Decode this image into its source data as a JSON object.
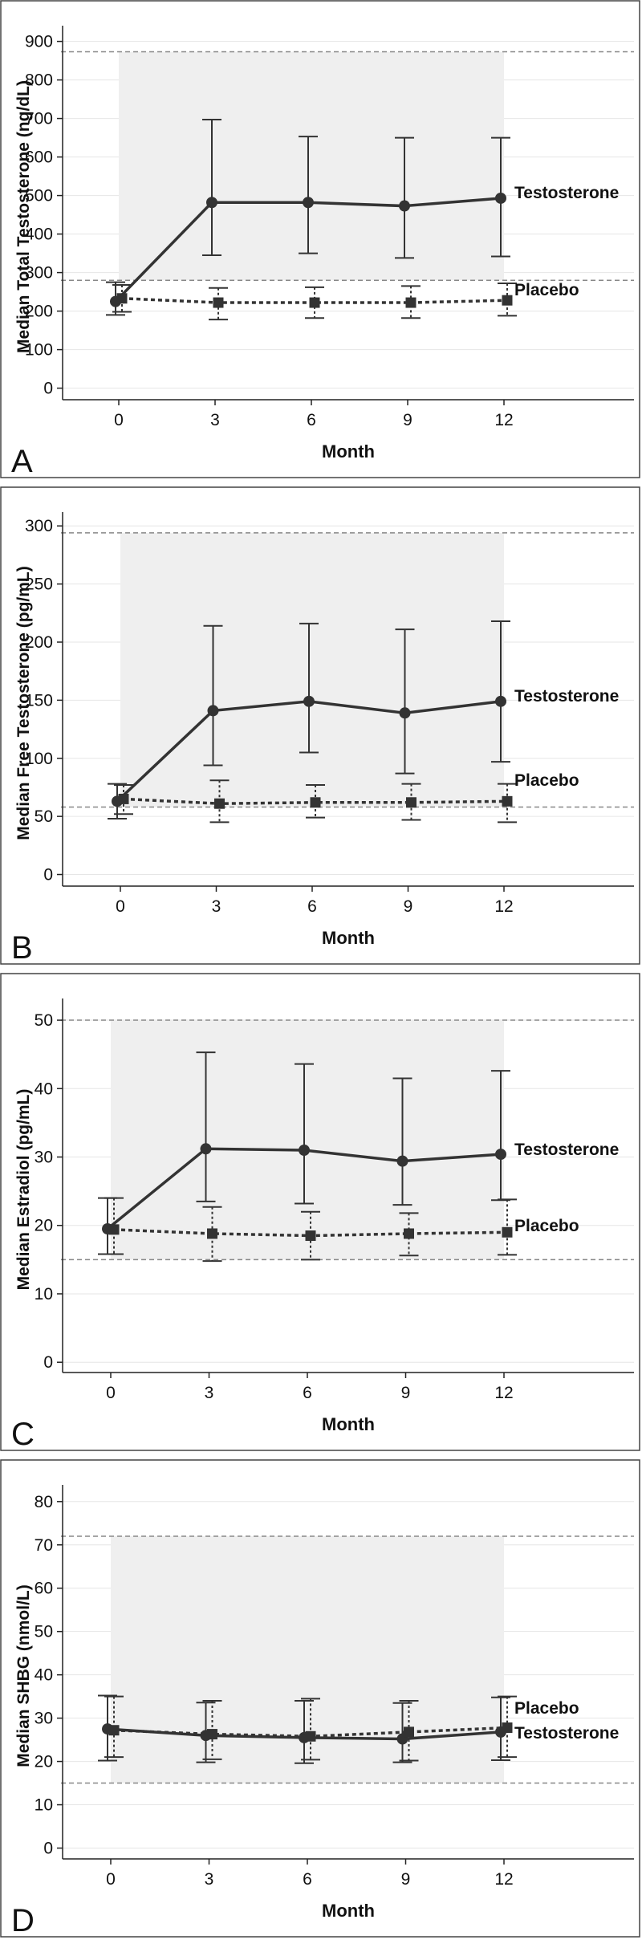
{
  "chart_data": [
    {
      "type": "line",
      "panel_letter": "A",
      "ylabel": "Median Total Testosterone (ng/dL)",
      "xlabel": "Month",
      "x": [
        0,
        3,
        6,
        9,
        12
      ],
      "xticks": [
        "0",
        "3",
        "6",
        "9",
        "12"
      ],
      "ylim": [
        -30,
        920
      ],
      "yticks": [
        0,
        100,
        200,
        300,
        400,
        500,
        600,
        700,
        800,
        900
      ],
      "normal_range": [
        280,
        873
      ],
      "shaded_range": [
        280,
        873
      ],
      "series": [
        {
          "name": "Testosterone",
          "values": [
            225,
            482,
            482,
            473,
            493
          ],
          "lower": [
            190,
            345,
            350,
            338,
            342
          ],
          "upper": [
            275,
            697,
            653,
            650,
            650
          ]
        },
        {
          "name": "Placebo",
          "values": [
            233,
            222,
            222,
            222,
            228
          ],
          "lower": [
            198,
            178,
            182,
            182,
            188
          ],
          "upper": [
            268,
            260,
            262,
            265,
            272
          ]
        }
      ]
    },
    {
      "type": "line",
      "panel_letter": "B",
      "ylabel": "Median Free Testosterone (pg/mL)",
      "xlabel": "Month",
      "x": [
        0,
        3,
        6,
        9,
        12
      ],
      "xticks": [
        "0",
        "3",
        "6",
        "9",
        "12"
      ],
      "ylim": [
        -10,
        305
      ],
      "yticks": [
        0,
        50,
        100,
        150,
        200,
        250,
        300
      ],
      "normal_range": [
        58,
        294
      ],
      "shaded_range": [
        58,
        294
      ],
      "series": [
        {
          "name": "Testosterone",
          "values": [
            63,
            141,
            149,
            139,
            149
          ],
          "lower": [
            48,
            94,
            105,
            87,
            97
          ],
          "upper": [
            78,
            214,
            216,
            211,
            218
          ]
        },
        {
          "name": "Placebo",
          "values": [
            65,
            61,
            62,
            62,
            63
          ],
          "lower": [
            52,
            45,
            49,
            47,
            45
          ],
          "upper": [
            77,
            81,
            77,
            78,
            78
          ]
        }
      ]
    },
    {
      "type": "line",
      "panel_letter": "C",
      "ylabel": "Median Estradiol (pg/mL)",
      "xlabel": "Month",
      "x": [
        0,
        3,
        6,
        9,
        12
      ],
      "xticks": [
        "0",
        "3",
        "6",
        "9",
        "12"
      ],
      "ylim": [
        -1.5,
        52
      ],
      "yticks": [
        0,
        10,
        20,
        30,
        40,
        50
      ],
      "normal_range": [
        15,
        50
      ],
      "shaded_range": [
        15,
        50
      ],
      "series": [
        {
          "name": "Testosterone",
          "values": [
            19.5,
            31.2,
            31.0,
            29.4,
            30.4
          ],
          "lower": [
            15.8,
            23.5,
            23.2,
            23.0,
            23.7
          ],
          "upper": [
            24.0,
            45.3,
            43.6,
            41.5,
            42.6
          ]
        },
        {
          "name": "Placebo",
          "values": [
            19.4,
            18.8,
            18.5,
            18.8,
            19.0
          ],
          "lower": [
            15.8,
            14.8,
            15.0,
            15.6,
            15.7
          ],
          "upper": [
            24.0,
            22.7,
            22.0,
            21.8,
            23.8
          ]
        }
      ]
    },
    {
      "type": "line",
      "panel_letter": "D",
      "ylabel": "Median SHBG (nmol/L)",
      "xlabel": "Month",
      "x": [
        0,
        3,
        6,
        9,
        12
      ],
      "xticks": [
        "0",
        "3",
        "6",
        "9",
        "12"
      ],
      "ylim": [
        -2.5,
        82
      ],
      "yticks": [
        0,
        10,
        20,
        30,
        40,
        50,
        60,
        70,
        80
      ],
      "normal_range": [
        15,
        72
      ],
      "shaded_range": [
        15,
        72
      ],
      "series": [
        {
          "name": "Testosterone",
          "values": [
            27.5,
            26.0,
            25.5,
            25.2,
            26.8
          ],
          "lower": [
            20.2,
            19.8,
            19.6,
            19.8,
            20.3
          ],
          "upper": [
            35.2,
            33.6,
            34.0,
            33.5,
            34.8
          ]
        },
        {
          "name": "Placebo",
          "values": [
            27.2,
            26.3,
            25.8,
            26.8,
            27.8
          ],
          "lower": [
            21.0,
            20.5,
            20.4,
            20.2,
            21.0
          ],
          "upper": [
            35.0,
            34.0,
            34.5,
            34.0,
            35.0
          ]
        }
      ]
    }
  ],
  "colors": {
    "line": "#333333",
    "shade": "#efefef",
    "reference": "#888888",
    "grid": "#e6e6e6"
  }
}
